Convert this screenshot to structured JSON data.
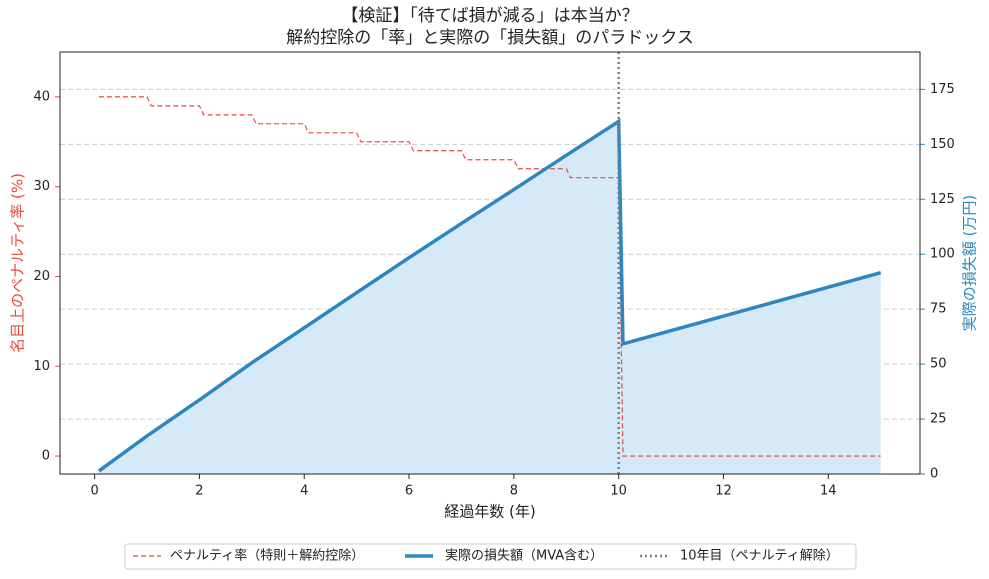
{
  "chart_data": {
    "type": "line",
    "title": "【検証】「待てば損が減る」は本当か？",
    "subtitle": "解約控除の「率」と実際の「損失額」のパラドックス",
    "xlabel": "経過年数 (年)",
    "ylabel": "名目上のペナルティ率 (%)",
    "y2label": "実際の損失額 (万円)",
    "xlim": [
      -0.66,
      15.75
    ],
    "xticks": [
      0,
      2,
      4,
      6,
      8,
      10,
      12,
      14
    ],
    "ylim": [
      -2,
      45
    ],
    "yticks": [
      0,
      10,
      20,
      30,
      40
    ],
    "y2lim": [
      0,
      192
    ],
    "y2ticks": [
      0,
      25,
      50,
      75,
      100,
      125,
      150,
      175
    ],
    "grid": true,
    "legend": "bottom",
    "series": [
      {
        "name": "ペナルティ率（特則＋解約控除）",
        "color": "#e74c3c",
        "style": "dashed",
        "axis": "y",
        "x": [
          0.083,
          1.0,
          1.083,
          2.0,
          2.083,
          3.0,
          3.083,
          4.0,
          4.083,
          5.0,
          5.083,
          6.0,
          6.083,
          7.0,
          7.083,
          8.0,
          8.083,
          9.0,
          9.083,
          10.0,
          10.083,
          15.0
        ],
        "values": [
          40,
          40,
          39,
          39,
          38,
          38,
          37,
          37,
          36,
          36,
          35,
          35,
          34,
          34,
          33,
          33,
          32,
          32,
          31,
          31,
          0,
          0
        ]
      },
      {
        "name": "実際の損失額（MVA含む）",
        "color": "#2e86c1",
        "style": "solid",
        "axis": "y2",
        "fill": "#d6e9f8",
        "x": [
          0.083,
          1.0,
          2.0,
          3.0,
          4.0,
          5.0,
          6.0,
          7.0,
          8.0,
          9.0,
          10.0,
          10.083,
          15.0
        ],
        "values": [
          1.4,
          17.3,
          33.7,
          50.6,
          66.5,
          82.5,
          98.4,
          114,
          129.4,
          145,
          160.4,
          59.2,
          91.6
        ]
      }
    ],
    "vline": {
      "x": 10,
      "name": "10年目（ペナルティ解除）",
      "color": "#808080"
    }
  }
}
